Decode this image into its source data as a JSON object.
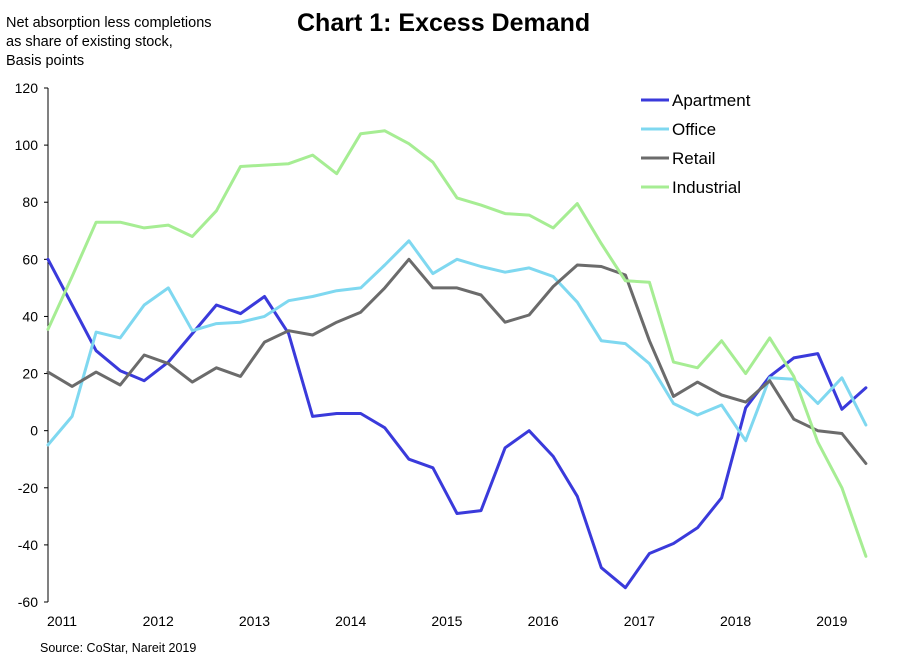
{
  "chart_data": {
    "type": "line",
    "title": "Chart 1: Excess Demand",
    "ylabel_lines": [
      "Net absorption less completions",
      "as share of existing stock,",
      "Basis points"
    ],
    "source": "Source: CoStar, Nareit 2019",
    "ylim": [
      -60,
      120
    ],
    "yticks": [
      -60,
      -40,
      -20,
      0,
      20,
      40,
      60,
      80,
      100,
      120
    ],
    "x_start": 2011,
    "x_step": 0.25,
    "xticks": [
      2011,
      2012,
      2013,
      2014,
      2015,
      2016,
      2017,
      2018,
      2019
    ],
    "xlim": [
      2011,
      2019.75
    ],
    "legend_position": "top-right",
    "grid": false,
    "series": [
      {
        "name": "Apartment",
        "color": "#3a3adb",
        "values": [
          60,
          44,
          28,
          21,
          17.5,
          24,
          34,
          44,
          41,
          47,
          34,
          5,
          6,
          6,
          1,
          -10,
          -13,
          -29,
          -28,
          -6,
          0,
          -9,
          -23,
          -48,
          -55,
          -43,
          -39.5,
          -34,
          -23.5,
          8,
          19,
          25.5,
          27,
          7.5,
          15
        ]
      },
      {
        "name": "Office",
        "color": "#7fd8f0",
        "values": [
          -5,
          5,
          34.5,
          32.5,
          44,
          50,
          35,
          37.5,
          38,
          40,
          45.5,
          47,
          49,
          50,
          58,
          66.5,
          55,
          60,
          57.5,
          55.5,
          57,
          54,
          45,
          31.5,
          30.5,
          23.5,
          9.5,
          5.5,
          9,
          -3.5,
          18.5,
          18,
          9.5,
          18.5,
          2
        ]
      },
      {
        "name": "Retail",
        "color": "#6b6b6b",
        "values": [
          20.5,
          15.5,
          20.5,
          16,
          26.5,
          23.5,
          17,
          22,
          19,
          31,
          35,
          33.5,
          38,
          41.5,
          50,
          60,
          50,
          50,
          47.5,
          38,
          40.5,
          50.5,
          58,
          57.5,
          54.5,
          31.5,
          12,
          17,
          12.5,
          10,
          17.5,
          4,
          0,
          -1,
          -11.5
        ]
      },
      {
        "name": "Industrial",
        "color": "#a6ed93",
        "values": [
          35.5,
          54,
          73,
          73,
          71,
          72,
          68,
          77,
          92.5,
          93,
          93.5,
          96.5,
          90,
          104,
          105,
          100.5,
          94,
          81.5,
          79,
          76,
          75.5,
          71,
          79.5,
          65.5,
          52.5,
          52,
          24,
          22,
          31.5,
          20,
          32.5,
          19,
          -4,
          -20,
          -44
        ]
      }
    ]
  }
}
